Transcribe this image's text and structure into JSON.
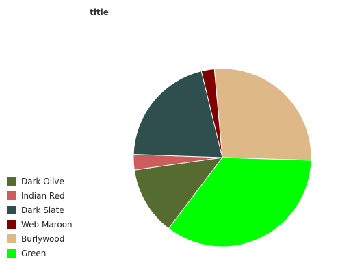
{
  "chart_data": {
    "type": "pie",
    "title": "title",
    "legend_position": "left",
    "slices": [
      {
        "label": "Dark Olive",
        "value": 12.1,
        "color": "#556B2F"
      },
      {
        "label": "Indian Red",
        "value": 2.7,
        "color": "#CD5C5C"
      },
      {
        "label": "Dark Slate",
        "value": 20.1,
        "color": "#2F4F4F"
      },
      {
        "label": "Web Maroon",
        "value": 2.3,
        "color": "#800000"
      },
      {
        "label": "Burlywood",
        "value": 26.2,
        "color": "#DEB887"
      },
      {
        "label": "Green",
        "value": 33.9,
        "color": "#00FF00"
      }
    ]
  }
}
